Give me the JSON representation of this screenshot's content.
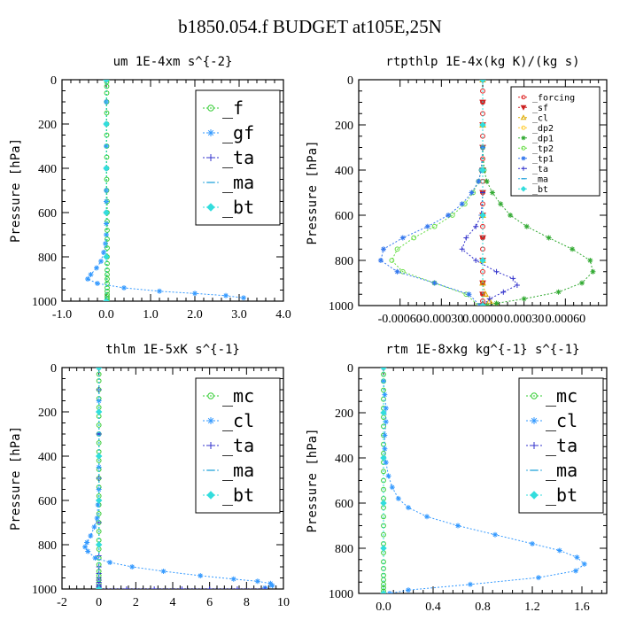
{
  "page": {
    "title": "b1850.054.f  BUDGET at105E,25N"
  },
  "chart_data": [
    {
      "type": "line",
      "title": "um  1E-4xm s^{-2}",
      "ylabel": "Pressure [hPa]",
      "xlim": [
        -1.0,
        4.0
      ],
      "ylim": [
        1000,
        0
      ],
      "xticks": [
        "-1.0",
        "0.0",
        "1.0",
        "2.0",
        "3.0",
        "4.0"
      ],
      "xtick_values": [
        -1,
        0,
        1,
        2,
        3,
        4
      ],
      "yticks": [
        0,
        200,
        400,
        600,
        800,
        1000
      ],
      "legend_position": "top-right",
      "legend_large": true,
      "series": [
        {
          "name": "_f",
          "color": "#33cc33",
          "marker": "circle",
          "x": [
            0.01,
            0.01,
            0.01,
            0.01,
            0.01,
            0.01,
            0.01,
            0.01,
            0.01,
            0.01,
            0.01,
            0.01,
            0.01,
            0.02,
            0.02,
            0.02,
            0.02,
            0.02,
            0.02,
            0.02,
            0.02,
            0.02,
            0.02,
            0.02,
            0.02,
            0.02,
            0.02,
            0.02,
            0.02,
            0.02,
            0.02
          ],
          "y": [
            0,
            10,
            30,
            60,
            100,
            150,
            200,
            250,
            300,
            350,
            400,
            450,
            500,
            550,
            600,
            640,
            680,
            720,
            760,
            800,
            830,
            860,
            880,
            900,
            920,
            940,
            955,
            970,
            980,
            990,
            1000
          ]
        },
        {
          "name": "_gf",
          "color": "#3399ff",
          "marker": "star",
          "x": [
            0.0,
            0.0,
            0.0,
            0.0,
            0.0,
            0.0,
            0.0,
            0.0,
            0.0,
            0.0,
            -0.02,
            -0.06,
            -0.12,
            -0.22,
            -0.35,
            -0.42,
            -0.2,
            0.4,
            1.2,
            2.0,
            2.7,
            3.1
          ],
          "y": [
            0,
            100,
            200,
            300,
            400,
            500,
            550,
            600,
            650,
            700,
            740,
            780,
            820,
            850,
            880,
            900,
            920,
            940,
            955,
            965,
            975,
            985
          ]
        },
        {
          "name": "_ta",
          "color": "#3333cc",
          "marker": "plus",
          "x": [
            0.0,
            0.0,
            0.0,
            0.0,
            0.0,
            0.0
          ],
          "y": [
            0,
            200,
            400,
            600,
            800,
            1000
          ]
        },
        {
          "name": "_ma",
          "color": "#33aadd",
          "marker": "dash",
          "x": [
            0.0,
            0.0,
            0.0,
            0.0,
            0.0,
            0.0
          ],
          "y": [
            0,
            200,
            400,
            600,
            800,
            1000
          ]
        },
        {
          "name": "_bt",
          "color": "#33dddd",
          "marker": "diamond",
          "x": [
            0.0,
            0.0,
            0.0,
            0.0,
            0.0,
            0.0
          ],
          "y": [
            0,
            200,
            400,
            600,
            800,
            1000
          ]
        }
      ]
    },
    {
      "type": "line",
      "title": "rtpthlp  1E-4x(kg K)/(kg s)",
      "ylabel": "Pressure [hPa]",
      "xlim": [
        -0.0009,
        0.0009
      ],
      "ylim": [
        1000,
        0
      ],
      "xticks": [
        "-0.00060",
        "-0.00030",
        "0.00000",
        "0.00030",
        "0.00060"
      ],
      "xtick_values": [
        -0.0006,
        -0.0003,
        0.0,
        0.0003,
        0.0006
      ],
      "yticks": [
        0,
        200,
        400,
        600,
        800,
        1000
      ],
      "legend_position": "top-right",
      "legend_large": false,
      "series": [
        {
          "name": "_forcing",
          "color": "#dd2222",
          "marker": "circle",
          "x": [
            0,
            0,
            0,
            0,
            0,
            0,
            0,
            0,
            0,
            0,
            0,
            0,
            0,
            0,
            0,
            0,
            0,
            0,
            0,
            0,
            0,
            0
          ],
          "y": [
            0,
            50,
            100,
            150,
            200,
            250,
            300,
            350,
            400,
            450,
            500,
            550,
            600,
            650,
            700,
            750,
            800,
            850,
            900,
            950,
            980,
            1000
          ]
        },
        {
          "name": "_sf",
          "color": "#cc2222",
          "marker": "tri-down",
          "x": [
            0,
            0,
            0,
            0,
            0,
            0,
            0,
            0,
            0,
            0,
            0,
            0
          ],
          "y": [
            0,
            100,
            200,
            300,
            400,
            500,
            600,
            700,
            800,
            900,
            950,
            1000
          ]
        },
        {
          "name": "_cl",
          "color": "#ddaa00",
          "marker": "tri-up",
          "x": [
            0,
            0,
            0,
            0,
            0,
            0,
            2e-05,
            5e-05,
            0.0001
          ],
          "y": [
            0,
            200,
            400,
            600,
            800,
            900,
            950,
            980,
            995
          ]
        },
        {
          "name": "_dp2",
          "color": "#ffcc33",
          "marker": "circle",
          "x": [
            0,
            0,
            0,
            0,
            0,
            0
          ],
          "y": [
            0,
            200,
            400,
            600,
            800,
            1000
          ]
        },
        {
          "name": "_dp1",
          "color": "#33aa33",
          "marker": "star",
          "x": [
            0,
            0,
            1e-05,
            3e-05,
            7e-05,
            0.00013,
            0.0002,
            0.00032,
            0.00048,
            0.00065,
            0.00078,
            0.0008,
            0.00072,
            0.00055,
            0.0003,
            0.0001,
            3e-05
          ],
          "y": [
            0,
            300,
            400,
            450,
            500,
            550,
            600,
            650,
            700,
            750,
            800,
            850,
            900,
            940,
            970,
            990,
            1000
          ]
        },
        {
          "name": "_tp2",
          "color": "#66dd44",
          "marker": "circle",
          "x": [
            0,
            0,
            -1e-05,
            -3e-05,
            -7e-05,
            -0.00013,
            -0.00022,
            -0.00035,
            -0.0005,
            -0.00062,
            -0.00066,
            -0.00058,
            -0.00035,
            -0.00012,
            -3e-05
          ],
          "y": [
            0,
            300,
            400,
            450,
            500,
            550,
            600,
            650,
            700,
            750,
            800,
            850,
            900,
            950,
            1000
          ]
        },
        {
          "name": "_tp1",
          "color": "#3377ee",
          "marker": "star",
          "x": [
            0,
            0,
            -1e-05,
            -3e-05,
            -8e-05,
            -0.00015,
            -0.00025,
            -0.0004,
            -0.00058,
            -0.00072,
            -0.00074,
            -0.00062,
            -0.00035,
            -0.0001,
            -2e-05
          ],
          "y": [
            0,
            300,
            400,
            450,
            500,
            550,
            600,
            650,
            700,
            750,
            800,
            850,
            900,
            950,
            1000
          ]
        },
        {
          "name": "_ta",
          "color": "#3333cc",
          "marker": "plus",
          "x": [
            0,
            0,
            0,
            -1e-05,
            -5e-05,
            -0.00012,
            -0.00015,
            -5e-05,
            0.0001,
            0.00022,
            0.00025,
            0.00015,
            5e-05,
            0
          ],
          "y": [
            0,
            400,
            500,
            600,
            650,
            700,
            750,
            800,
            850,
            880,
            910,
            940,
            970,
            1000
          ]
        },
        {
          "name": "_ma",
          "color": "#33aadd",
          "marker": "dash",
          "x": [
            0,
            0,
            0,
            0,
            0,
            0
          ],
          "y": [
            0,
            200,
            400,
            600,
            800,
            1000
          ]
        },
        {
          "name": "_bt",
          "color": "#33dddd",
          "marker": "diamond",
          "x": [
            0,
            0,
            0,
            0,
            0,
            0
          ],
          "y": [
            0,
            200,
            400,
            600,
            800,
            1000
          ]
        }
      ]
    },
    {
      "type": "line",
      "title": "thlm  1E-5xK s^{-1}",
      "ylabel": "Pressure [hPa]",
      "xlim": [
        -2,
        10
      ],
      "ylim": [
        1000,
        0
      ],
      "xticks": [
        "-2",
        "0",
        "2",
        "4",
        "6",
        "8",
        "10"
      ],
      "xtick_values": [
        -2,
        0,
        2,
        4,
        6,
        8,
        10
      ],
      "yticks": [
        0,
        200,
        400,
        600,
        800,
        1000
      ],
      "legend_position": "top-right",
      "legend_large": true,
      "series": [
        {
          "name": "_mc",
          "color": "#33cc33",
          "marker": "circle",
          "x": [
            0,
            0,
            0,
            0,
            0,
            0,
            0,
            0,
            0,
            0,
            0,
            0,
            0,
            0,
            0,
            0,
            0,
            0,
            0,
            0,
            0,
            0,
            0,
            0,
            0,
            0,
            0,
            0,
            0,
            0
          ],
          "y": [
            0,
            30,
            60,
            100,
            140,
            180,
            220,
            260,
            300,
            340,
            380,
            420,
            460,
            500,
            540,
            580,
            620,
            660,
            700,
            740,
            780,
            820,
            860,
            890,
            920,
            940,
            960,
            975,
            990,
            1000
          ]
        },
        {
          "name": "_cl",
          "color": "#3399ff",
          "marker": "star",
          "x": [
            0,
            0,
            0,
            0,
            0,
            -0.05,
            -0.1,
            -0.25,
            -0.45,
            -0.65,
            -0.75,
            -0.6,
            -0.2,
            0.6,
            1.8,
            3.5,
            5.5,
            7.3,
            8.6,
            9.3,
            9.4,
            9.0
          ],
          "y": [
            0,
            150,
            300,
            450,
            550,
            620,
            680,
            720,
            760,
            790,
            810,
            830,
            860,
            880,
            900,
            920,
            940,
            955,
            965,
            975,
            985,
            995
          ]
        },
        {
          "name": "_ta",
          "color": "#3333cc",
          "marker": "plus",
          "x": [
            0,
            0,
            0,
            0,
            0,
            0,
            0,
            0,
            0,
            0,
            0,
            0,
            0,
            0,
            0,
            0,
            0,
            0,
            0,
            0,
            0,
            1.5,
            3,
            4.5,
            6,
            7.5,
            9
          ],
          "y": [
            0,
            100,
            200,
            300,
            400,
            500,
            600,
            700,
            800,
            850,
            900,
            930,
            950,
            960,
            970,
            980,
            985,
            990,
            995,
            998,
            1000,
            1000,
            1000,
            1000,
            1000,
            1000,
            1000
          ]
        },
        {
          "name": "_ma",
          "color": "#33aadd",
          "marker": "dash",
          "x": [
            0,
            0,
            0,
            0,
            0,
            0
          ],
          "y": [
            0,
            200,
            400,
            600,
            800,
            1000
          ]
        },
        {
          "name": "_bt",
          "color": "#33dddd",
          "marker": "diamond",
          "x": [
            0,
            0,
            0,
            0,
            0,
            0
          ],
          "y": [
            0,
            200,
            400,
            600,
            800,
            1000
          ]
        }
      ]
    },
    {
      "type": "line",
      "title": "rtm  1E-8xkg kg^{-1} s^{-1}",
      "ylabel": "Pressure [hPa]",
      "xlim": [
        -0.2,
        1.8
      ],
      "ylim": [
        1000,
        0
      ],
      "xticks": [
        "0.0",
        "0.4",
        "0.8",
        "1.2",
        "1.6"
      ],
      "xtick_values": [
        0.0,
        0.4,
        0.8,
        1.2,
        1.6
      ],
      "yticks": [
        0,
        200,
        400,
        600,
        800,
        1000
      ],
      "legend_position": "top-right",
      "legend_large": true,
      "series": [
        {
          "name": "_mc",
          "color": "#33cc33",
          "marker": "circle",
          "x": [
            0,
            0,
            0,
            0,
            0,
            0,
            0,
            0,
            0,
            0,
            0,
            0,
            0,
            0,
            0,
            0,
            0,
            0,
            0,
            0,
            0,
            0,
            0,
            0,
            0,
            0,
            0,
            0,
            0,
            0
          ],
          "y": [
            0,
            30,
            60,
            100,
            140,
            180,
            220,
            260,
            300,
            340,
            380,
            420,
            460,
            500,
            540,
            580,
            620,
            660,
            700,
            740,
            780,
            820,
            860,
            890,
            920,
            940,
            960,
            975,
            990,
            1000
          ]
        },
        {
          "name": "_cl",
          "color": "#3399ff",
          "marker": "star",
          "x": [
            0,
            0,
            0.01,
            0.02,
            0.02,
            0.01,
            0.01,
            0.02,
            0.04,
            0.07,
            0.12,
            0.2,
            0.35,
            0.6,
            0.9,
            1.2,
            1.42,
            1.56,
            1.62,
            1.55,
            1.25,
            0.7,
            0.2,
            0.05
          ],
          "y": [
            0,
            60,
            120,
            180,
            240,
            300,
            360,
            420,
            480,
            530,
            580,
            620,
            660,
            700,
            740,
            780,
            810,
            840,
            870,
            900,
            930,
            960,
            985,
            1000
          ]
        },
        {
          "name": "_ta",
          "color": "#3333cc",
          "marker": "plus",
          "x": [
            0,
            0,
            0,
            0,
            0,
            0
          ],
          "y": [
            0,
            200,
            400,
            600,
            800,
            1000
          ]
        },
        {
          "name": "_ma",
          "color": "#33aadd",
          "marker": "dash",
          "x": [
            0,
            0,
            0,
            0,
            0,
            0
          ],
          "y": [
            0,
            200,
            400,
            600,
            800,
            1000
          ]
        },
        {
          "name": "_bt",
          "color": "#33dddd",
          "marker": "diamond",
          "x": [
            0,
            0,
            0,
            0,
            0,
            0
          ],
          "y": [
            0,
            200,
            400,
            600,
            800,
            1000
          ]
        }
      ]
    }
  ]
}
